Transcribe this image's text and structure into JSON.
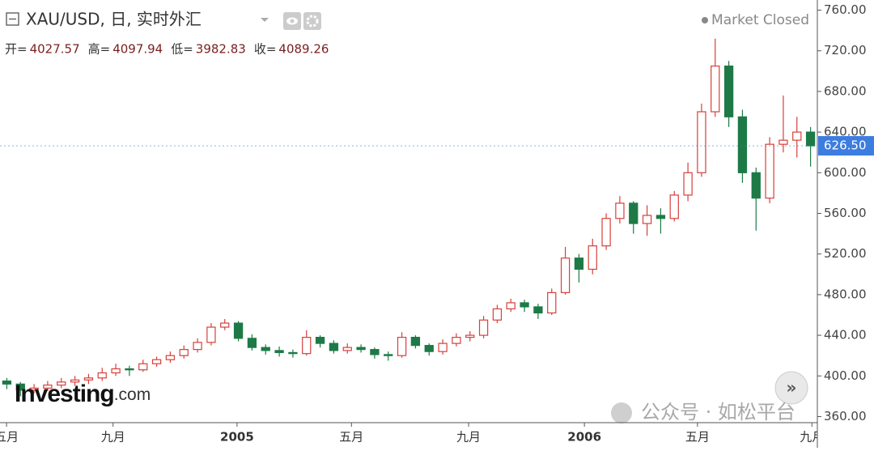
{
  "chart_data": {
    "type": "candlestick",
    "title": "XAU/USD, 日, 实时外汇",
    "status": "Market Closed",
    "ohlc_header": [
      {
        "label": "开=",
        "value": "4027.57"
      },
      {
        "label": "高=",
        "value": "4097.94"
      },
      {
        "label": "低=",
        "value": "3982.83"
      },
      {
        "label": "收=",
        "value": "4089.26"
      }
    ],
    "logo": {
      "brand": "Investing",
      "suffix": ".com"
    },
    "watermark": "公众号 · 如松平台",
    "up_color": "#d6403a",
    "down_color": "#1d7a46",
    "open": [
      395,
      392,
      386,
      388,
      391,
      394,
      396,
      398,
      403,
      407,
      406,
      412,
      416,
      420,
      426,
      433,
      448,
      452,
      437,
      428,
      425,
      423,
      422,
      438,
      432,
      425,
      428,
      426,
      421,
      420,
      438,
      430,
      424,
      432,
      438,
      440,
      455,
      466,
      472,
      468,
      462,
      482,
      516,
      505,
      528,
      555,
      570,
      550,
      558,
      555,
      578,
      600,
      660,
      705,
      655,
      600,
      575,
      628,
      632,
      640
    ],
    "high": [
      398,
      394,
      392,
      395,
      398,
      400,
      402,
      408,
      412,
      410,
      416,
      419,
      424,
      430,
      437,
      452,
      456,
      454,
      441,
      431,
      429,
      426,
      445,
      440,
      435,
      432,
      431,
      428,
      424,
      443,
      440,
      432,
      436,
      442,
      444,
      459,
      470,
      476,
      475,
      471,
      486,
      527,
      520,
      535,
      560,
      577,
      572,
      568,
      565,
      582,
      610,
      668,
      732,
      710,
      662,
      605,
      635,
      676,
      655,
      645
    ],
    "low": [
      387,
      380,
      383,
      385,
      388,
      390,
      392,
      395,
      400,
      400,
      404,
      409,
      413,
      417,
      423,
      430,
      445,
      434,
      425,
      421,
      419,
      418,
      420,
      428,
      422,
      422,
      423,
      417,
      415,
      418,
      427,
      420,
      421,
      429,
      434,
      437,
      452,
      463,
      463,
      456,
      460,
      480,
      492,
      500,
      524,
      550,
      540,
      538,
      540,
      552,
      572,
      596,
      655,
      645,
      590,
      543,
      570,
      620,
      615,
      606
    ],
    "close": [
      392,
      386,
      388,
      391,
      394,
      396,
      398,
      403,
      407,
      406,
      412,
      416,
      420,
      426,
      433,
      448,
      452,
      437,
      428,
      425,
      423,
      422,
      438,
      432,
      425,
      428,
      426,
      421,
      420,
      438,
      430,
      424,
      432,
      438,
      440,
      455,
      466,
      472,
      468,
      462,
      482,
      516,
      505,
      528,
      555,
      570,
      550,
      558,
      555,
      578,
      600,
      660,
      705,
      655,
      600,
      575,
      628,
      632,
      640,
      626.5
    ],
    "last_price": {
      "value": 626.5,
      "label": "626.50"
    },
    "xlim": [
      0,
      60
    ],
    "xticks": [
      {
        "value": 0.48,
        "label": "五月"
      },
      {
        "value": 8.3,
        "label": "九月"
      },
      {
        "value": 17.4,
        "label": "2005"
      },
      {
        "value": 25.8,
        "label": "五月"
      },
      {
        "value": 34.4,
        "label": "九月"
      },
      {
        "value": 42.9,
        "label": "2006"
      },
      {
        "value": 51.2,
        "label": "五月"
      },
      {
        "value": 59.6,
        "label": "九月"
      }
    ],
    "ylim": [
      354,
      770
    ],
    "yticks": [
      {
        "value": 360,
        "label": "360.00"
      },
      {
        "value": 400,
        "label": "400.00"
      },
      {
        "value": 440,
        "label": "440.00"
      },
      {
        "value": 480,
        "label": "480.00"
      },
      {
        "value": 520,
        "label": "520.00"
      },
      {
        "value": 560,
        "label": "560.00"
      },
      {
        "value": 600,
        "label": "600.00"
      },
      {
        "value": 640,
        "label": "640.00"
      },
      {
        "value": 680,
        "label": "680.00"
      },
      {
        "value": 720,
        "label": "720.00"
      },
      {
        "value": 760,
        "label": "760.00"
      }
    ]
  }
}
